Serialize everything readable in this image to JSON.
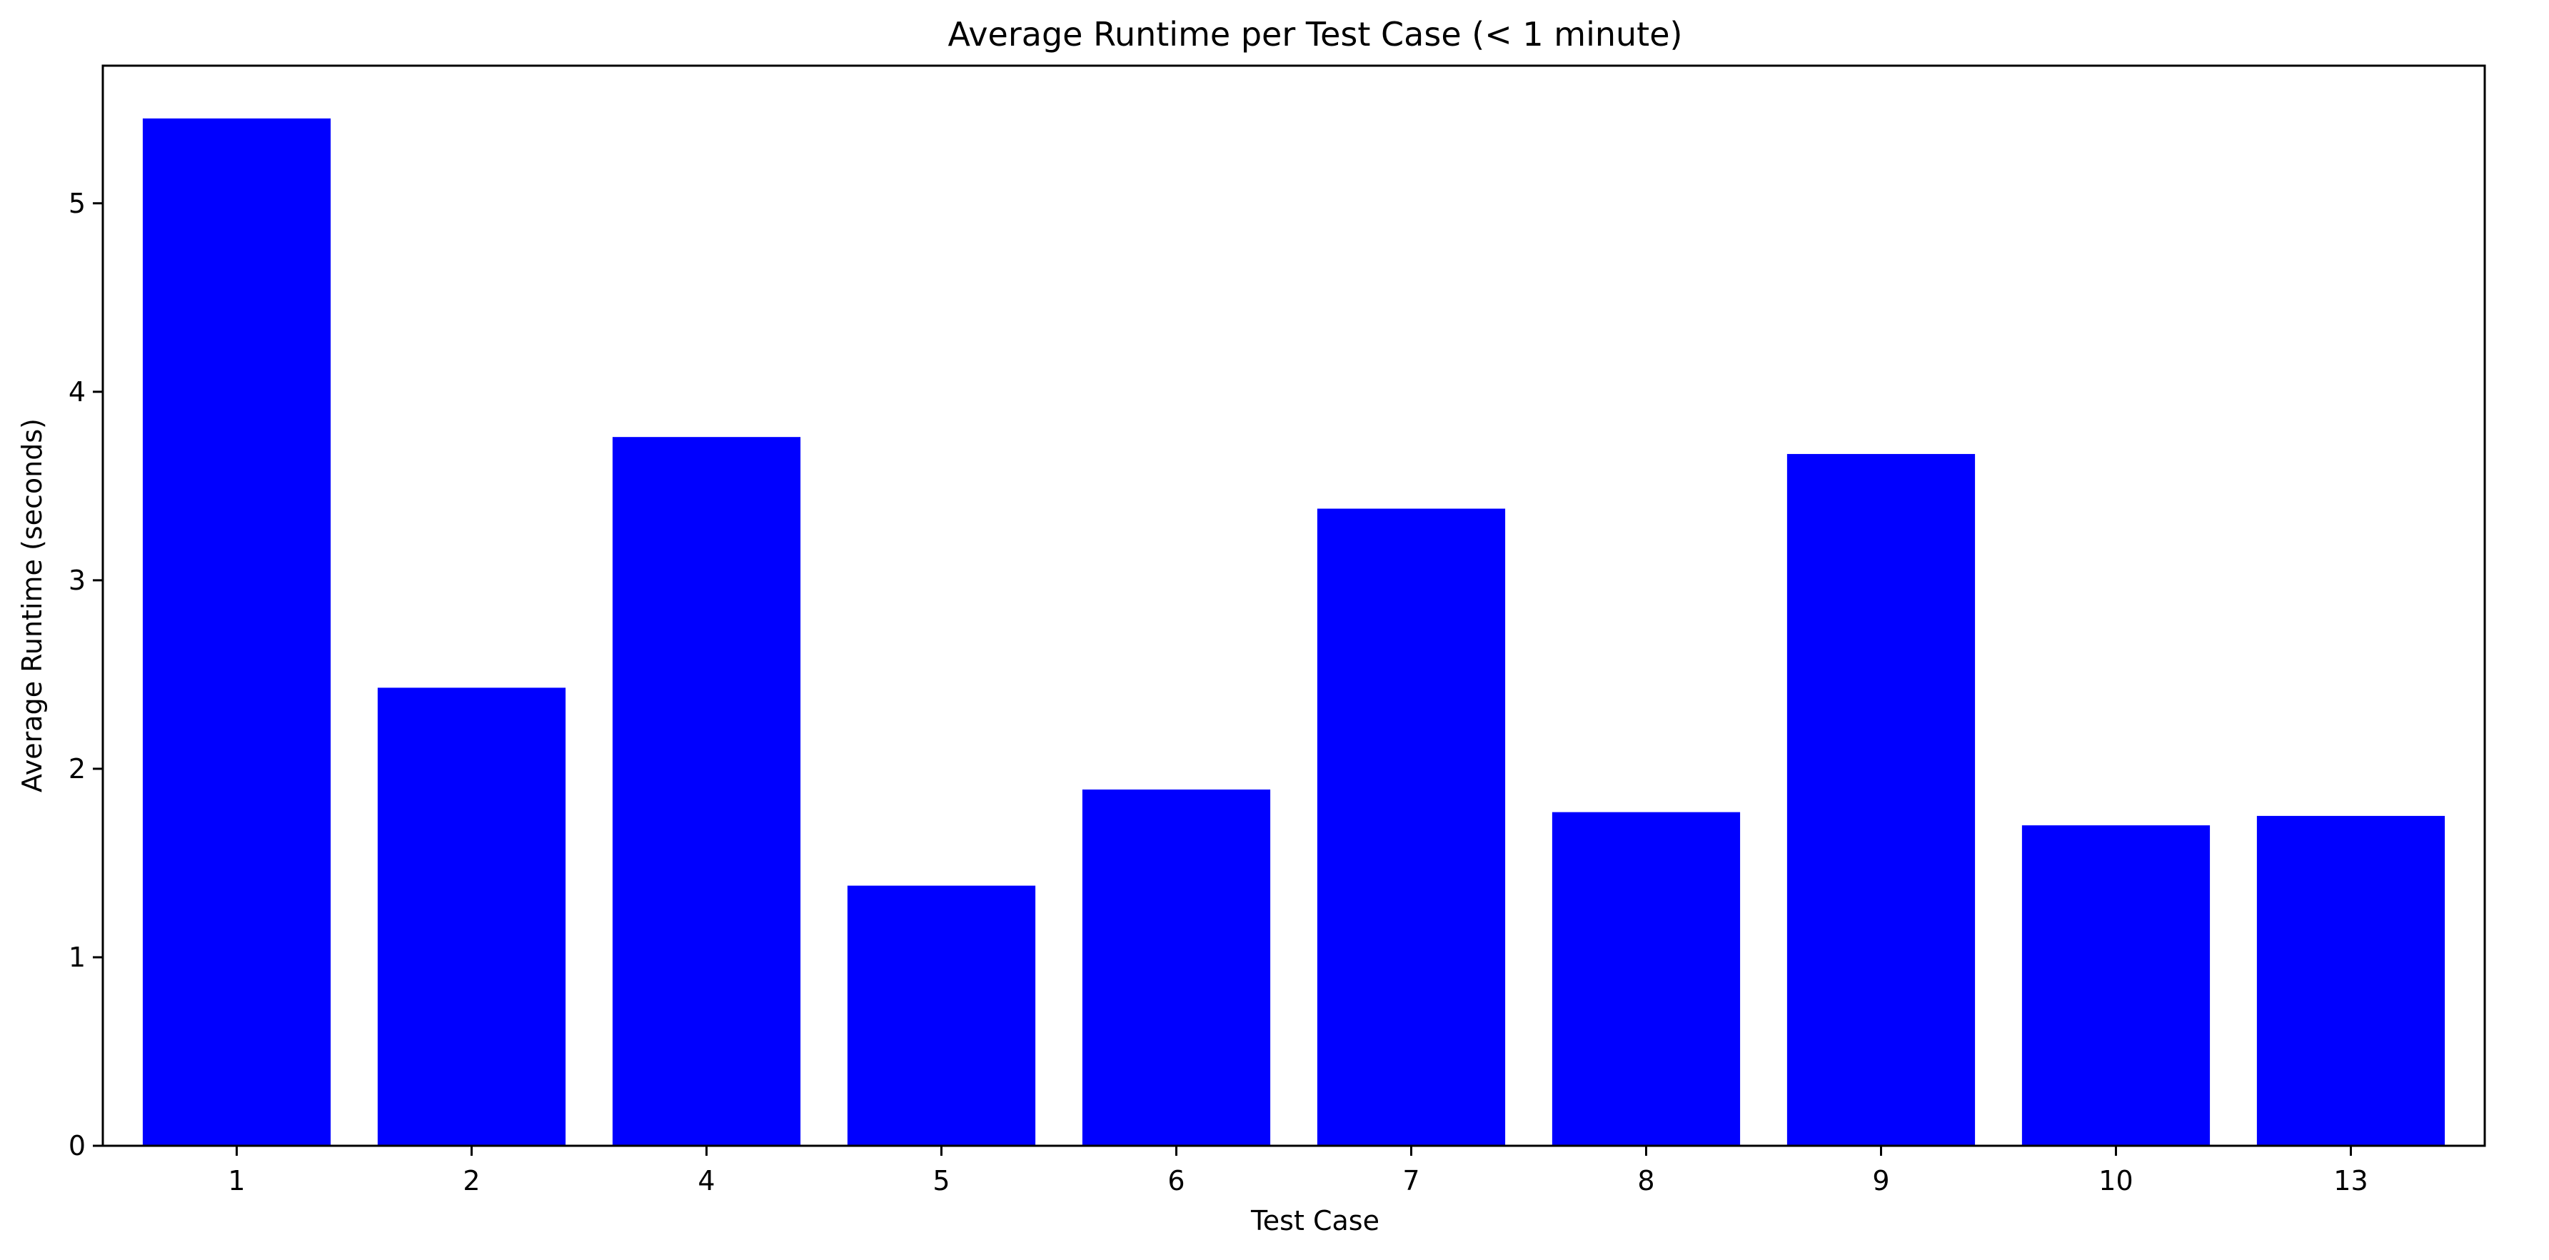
{
  "chart_data": {
    "type": "bar",
    "title": "Average Runtime per Test Case (< 1 minute)",
    "xlabel": "Test Case",
    "ylabel": "Average Runtime (seconds)",
    "categories": [
      "1",
      "2",
      "4",
      "5",
      "6",
      "7",
      "8",
      "9",
      "10",
      "13"
    ],
    "values": [
      5.45,
      2.43,
      3.76,
      1.38,
      1.89,
      3.38,
      1.77,
      3.67,
      1.7,
      1.75
    ],
    "ylim": [
      0,
      5.73
    ],
    "yticks": [
      0,
      1,
      2,
      3,
      4,
      5
    ],
    "bar_color": "#0000ff",
    "grid": false,
    "legend": null
  }
}
